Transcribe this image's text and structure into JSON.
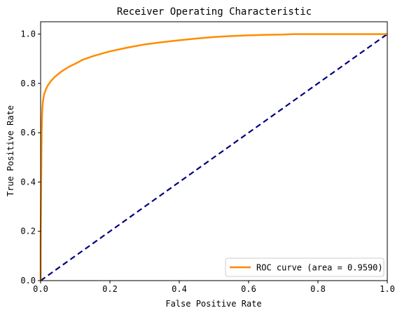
{
  "chart_data": {
    "type": "line",
    "title": "Receiver Operating Characteristic",
    "xlabel": "False Positive Rate",
    "ylabel": "True Positive Rate",
    "xlim": [
      0.0,
      1.0
    ],
    "ylim": [
      0.0,
      1.05
    ],
    "x_ticks": [
      "0.0",
      "0.2",
      "0.4",
      "0.6",
      "0.8",
      "1.0"
    ],
    "y_ticks": [
      "0.0",
      "0.2",
      "0.4",
      "0.6",
      "0.8",
      "1.0"
    ],
    "grid": false,
    "legend_position": "lower-right",
    "series": [
      {
        "name": "ROC curve (area = 0.9590)",
        "color": "#ff8c00",
        "line_style": "solid",
        "x": [
          0.0,
          0.0,
          0.002,
          0.003,
          0.004,
          0.005,
          0.007,
          0.01,
          0.015,
          0.02,
          0.03,
          0.04,
          0.05,
          0.06,
          0.07,
          0.08,
          0.1,
          0.12,
          0.15,
          0.18,
          0.2,
          0.25,
          0.3,
          0.35,
          0.4,
          0.45,
          0.5,
          0.55,
          0.6,
          0.65,
          0.7,
          0.73,
          0.8,
          0.9,
          1.0
        ],
        "y": [
          0.0,
          0.15,
          0.45,
          0.6,
          0.66,
          0.7,
          0.73,
          0.755,
          0.775,
          0.79,
          0.81,
          0.825,
          0.837,
          0.848,
          0.857,
          0.866,
          0.88,
          0.895,
          0.91,
          0.922,
          0.93,
          0.945,
          0.958,
          0.967,
          0.975,
          0.982,
          0.988,
          0.992,
          0.995,
          0.997,
          0.998,
          1.0,
          1.0,
          1.0,
          1.0
        ]
      },
      {
        "name": "",
        "color": "#000080",
        "line_style": "dashed",
        "x": [
          0.0,
          1.0
        ],
        "y": [
          0.0,
          1.0
        ]
      }
    ]
  }
}
